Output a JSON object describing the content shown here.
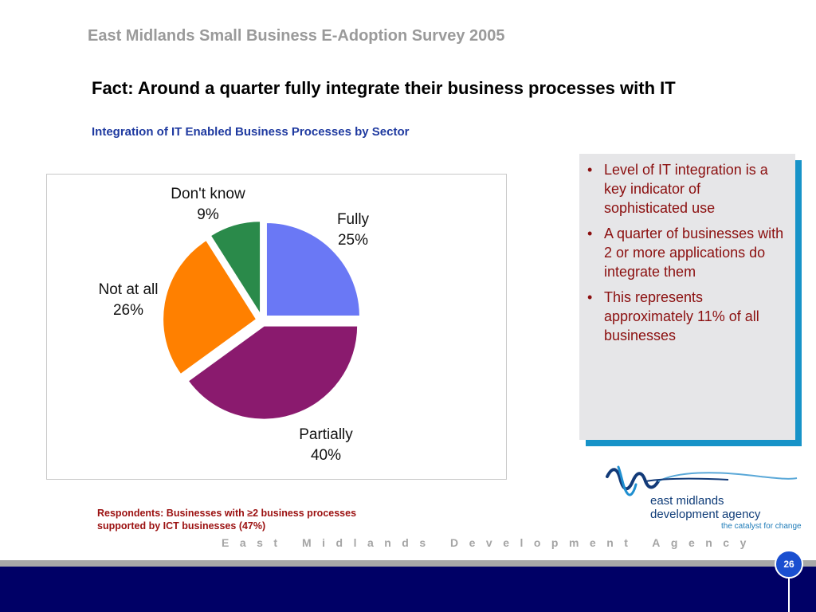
{
  "header": {
    "survey_title": "East Midlands Small Business E-Adoption Survey 2005",
    "fact_title": "Fact: Around a quarter fully integrate their business processes with IT"
  },
  "chart_data": {
    "type": "pie",
    "title": "Integration of IT Enabled Business Processes by Sector",
    "slices": [
      {
        "label": "Fully",
        "value": 25,
        "value_label": "25%",
        "color": "#6a78f5"
      },
      {
        "label": "Partially",
        "value": 40,
        "value_label": "40%",
        "color": "#8a1a6e"
      },
      {
        "label": "Not at all",
        "value": 26,
        "value_label": "26%",
        "color": "#ff8000"
      },
      {
        "label": "Don't know",
        "value": 9,
        "value_label": "9%",
        "color": "#2a8a4a"
      }
    ]
  },
  "notes": {
    "bullet": "•",
    "items": [
      "Level of IT integration is a key indicator of sophisticated use",
      "A quarter of businesses with 2 or more applications do integrate them",
      "This represents approximately 11% of all businesses"
    ]
  },
  "footer": {
    "respondents_line1": "Respondents: Businesses with ≥2 business processes",
    "respondents_line2": "supported by ICT businesses (47%)",
    "agency_spaced": "East Midlands Development Agency",
    "page_number": "26"
  },
  "logo": {
    "line1": "east midlands",
    "line2": "development agency",
    "tagline": "the catalyst for change"
  },
  "colors": {
    "accent_blue": "#1793c8",
    "navy": "#000066",
    "note_text": "#8b0f0f",
    "subtitle_blue": "#1f3aa0"
  }
}
